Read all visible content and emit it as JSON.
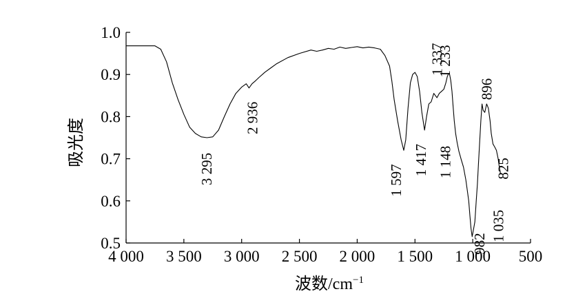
{
  "chart_data": {
    "type": "line",
    "title": "",
    "xlabel": "波数/cm",
    "xlabel_superscript": "−1",
    "ylabel": "吸光度",
    "xlim": [
      4000,
      500
    ],
    "ylim": [
      0.5,
      1.0
    ],
    "x_reversed": true,
    "grid": false,
    "x_ticks": [
      4000,
      3500,
      3000,
      2500,
      2000,
      1500,
      1000,
      500
    ],
    "x_tick_labels": [
      "4 000",
      "3 500",
      "3 000",
      "2 500",
      "2 000",
      "1 500",
      "1 000",
      "500"
    ],
    "y_ticks": [
      0.5,
      0.6,
      0.7,
      0.8,
      0.9,
      1.0
    ],
    "y_tick_labels": [
      "0.5",
      "0.6",
      "0.7",
      "0.8",
      "0.9",
      "1.0"
    ],
    "series": [
      {
        "x": [
          4000,
          3850,
          3750,
          3700,
          3650,
          3600,
          3550,
          3500,
          3450,
          3400,
          3350,
          3300,
          3250,
          3200,
          3150,
          3100,
          3050,
          3000,
          2960,
          2936,
          2910,
          2880,
          2850,
          2800,
          2750,
          2700,
          2600,
          2500,
          2400,
          2350,
          2300,
          2250,
          2200,
          2150,
          2100,
          2050,
          2000,
          1950,
          1900,
          1850,
          1800,
          1760,
          1720,
          1700,
          1680,
          1650,
          1620,
          1597,
          1580,
          1560,
          1540,
          1520,
          1500,
          1480,
          1460,
          1440,
          1417,
          1400,
          1380,
          1360,
          1337,
          1310,
          1290,
          1270,
          1250,
          1233,
          1220,
          1210,
          1200,
          1190,
          1180,
          1170,
          1160,
          1148,
          1135,
          1120,
          1100,
          1080,
          1060,
          1050,
          1035,
          1025,
          1015,
          1005,
          995,
          982,
          970,
          960,
          950,
          940,
          930,
          920,
          910,
          896,
          880,
          865,
          850,
          840,
          825,
          810,
          795,
          780,
          770,
          760
        ],
        "y": [
          0.968,
          0.968,
          0.968,
          0.96,
          0.93,
          0.88,
          0.84,
          0.805,
          0.775,
          0.76,
          0.752,
          0.75,
          0.752,
          0.768,
          0.8,
          0.83,
          0.855,
          0.87,
          0.878,
          0.868,
          0.878,
          0.885,
          0.893,
          0.905,
          0.915,
          0.925,
          0.94,
          0.95,
          0.958,
          0.955,
          0.958,
          0.962,
          0.96,
          0.965,
          0.962,
          0.964,
          0.966,
          0.963,
          0.965,
          0.963,
          0.96,
          0.945,
          0.92,
          0.885,
          0.84,
          0.79,
          0.745,
          0.72,
          0.745,
          0.82,
          0.88,
          0.9,
          0.905,
          0.895,
          0.86,
          0.81,
          0.768,
          0.8,
          0.83,
          0.835,
          0.855,
          0.845,
          0.855,
          0.86,
          0.865,
          0.88,
          0.895,
          0.902,
          0.9,
          0.885,
          0.86,
          0.825,
          0.79,
          0.76,
          0.738,
          0.718,
          0.698,
          0.68,
          0.65,
          0.63,
          0.6,
          0.565,
          0.535,
          0.515,
          0.53,
          0.55,
          0.6,
          0.64,
          0.69,
          0.74,
          0.79,
          0.83,
          0.815,
          0.81,
          0.83,
          0.82,
          0.79,
          0.76,
          0.735,
          0.728,
          0.72,
          0.7,
          0.68,
          0.665
        ]
      }
    ],
    "annotations": [
      {
        "label": "3 295",
        "x": 3295
      },
      {
        "label": "2 936",
        "x": 2936
      },
      {
        "label": "1 597",
        "x": 1597
      },
      {
        "label": "1 417",
        "x": 1417
      },
      {
        "label": "1 337",
        "x": 1337
      },
      {
        "label": "1 233",
        "x": 1233
      },
      {
        "label": "1 148",
        "x": 1148
      },
      {
        "label": "982",
        "x": 982
      },
      {
        "label": "896",
        "x": 896
      },
      {
        "label": "825",
        "x": 825
      },
      {
        "label": "1 035",
        "x": 1035
      }
    ]
  }
}
